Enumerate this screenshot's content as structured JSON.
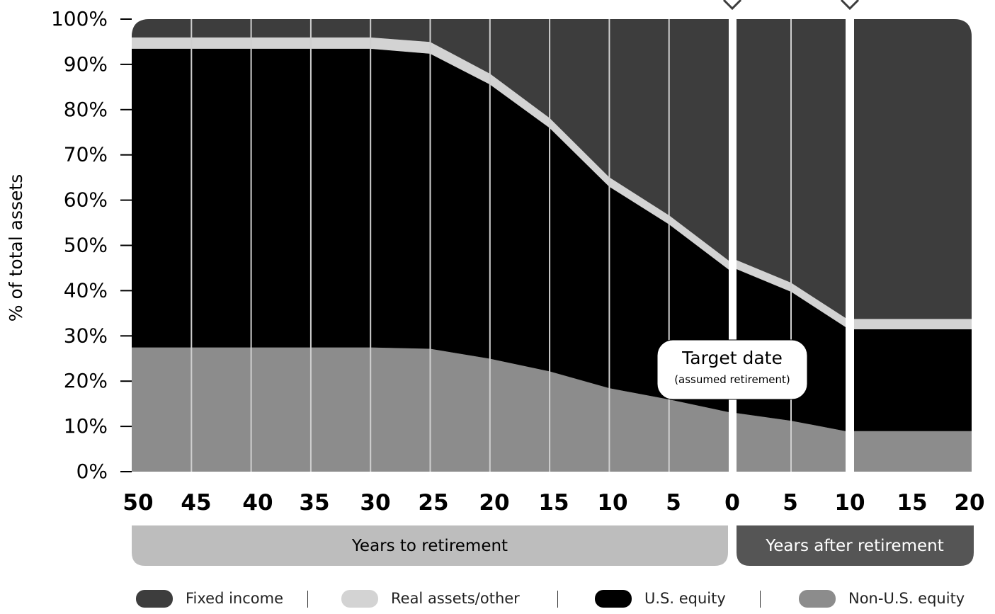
{
  "chart_data": {
    "type": "area",
    "ylabel": "% of total assets",
    "yticks": [
      "0%",
      "10%",
      "20%",
      "30%",
      "40%",
      "50%",
      "60%",
      "70%",
      "80%",
      "90%",
      "100%"
    ],
    "ylim": [
      0,
      100
    ],
    "segments": [
      {
        "x_ticks": [
          "50",
          "45",
          "40",
          "35",
          "30",
          "25",
          "20",
          "15",
          "10",
          "5",
          "0"
        ],
        "x": [
          50,
          45,
          40,
          35,
          30,
          25,
          20,
          15,
          10,
          5,
          0
        ],
        "xlim": [
          50,
          0
        ],
        "phase_label": "Years to retirement"
      },
      {
        "x_ticks": [
          "0",
          "5",
          "10"
        ],
        "x": [
          0,
          5,
          10
        ],
        "xlim": [
          0,
          10
        ],
        "phase_label": "Years after retirement"
      },
      {
        "x_ticks": [
          "15",
          "20"
        ],
        "x": [
          10,
          20
        ],
        "xlim": [
          10,
          20
        ],
        "phase_label": ""
      }
    ],
    "series": [
      {
        "name": "Non-U.S. equity",
        "color": "#8c8c8c",
        "values_by_segment": [
          [
            27.5,
            27.5,
            27.5,
            27.5,
            27.5,
            27.2,
            25,
            22.2,
            18.5,
            16,
            13.2
          ],
          [
            13,
            11.3,
            9
          ],
          [
            9,
            9
          ]
        ]
      },
      {
        "name": "U.S. equity",
        "color": "#000000",
        "values_by_segment": [
          [
            66,
            66,
            66,
            66,
            66,
            65.2,
            60.6,
            53.8,
            44.5,
            38.7,
            31.5
          ],
          [
            31.8,
            28.5,
            23
          ],
          [
            22.5,
            22.5
          ]
        ]
      },
      {
        "name": "Real assets/other",
        "color": "#d3d3d3",
        "values_by_segment": [
          [
            2.5,
            2.5,
            2.5,
            2.5,
            2.5,
            2.6,
            2.4,
            2.2,
            2.1,
            2,
            2
          ],
          [
            2,
            2,
            2
          ],
          [
            2.3,
            2.3
          ]
        ]
      },
      {
        "name": "Fixed income",
        "color": "#3d3d3d",
        "values_by_segment": [
          [
            4,
            4,
            4,
            4,
            4,
            5,
            12,
            21.8,
            34.9,
            43.3,
            53.3
          ],
          [
            53.2,
            58.2,
            66
          ],
          [
            66.2,
            66.2
          ]
        ]
      }
    ],
    "annotation": {
      "title": "Target date",
      "subtitle": "(assumed retirement)"
    },
    "legend_position": "bottom",
    "legend_order": [
      "Fixed income",
      "Real assets/other",
      "U.S. equity",
      "Non-U.S. equity"
    ]
  }
}
